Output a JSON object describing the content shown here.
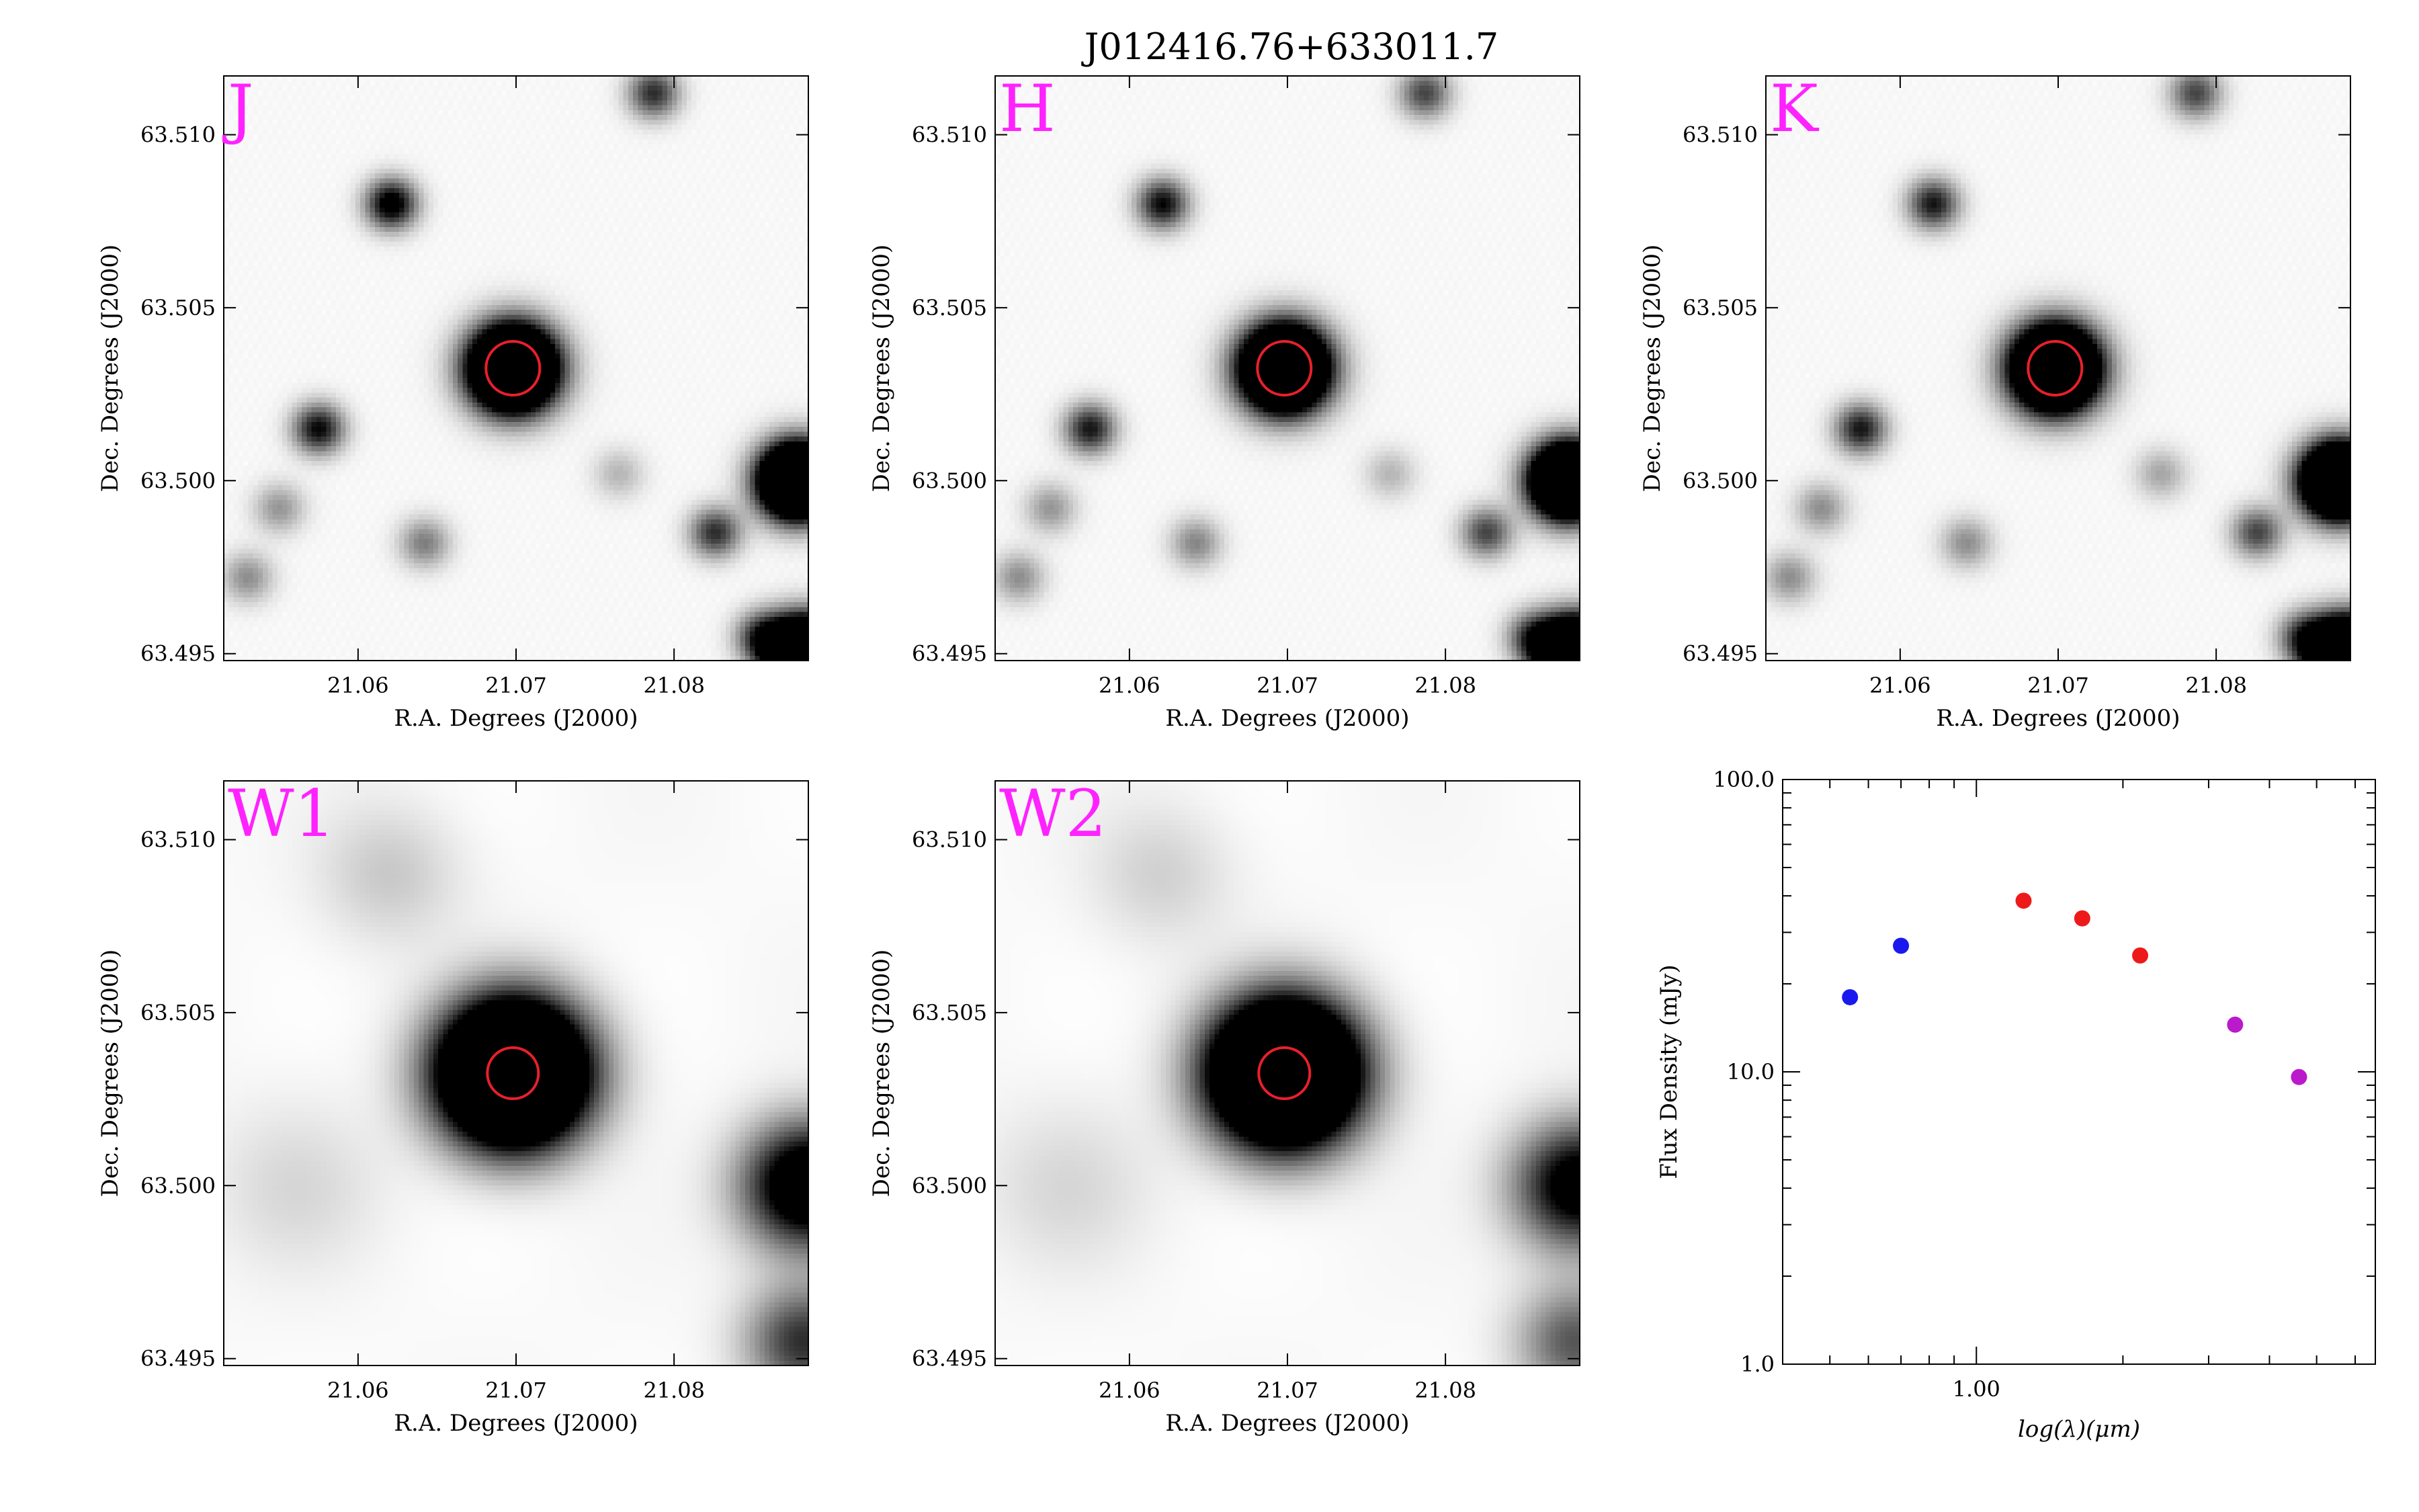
{
  "figure_title": "J012416.76+633011.7",
  "colors": {
    "band_label": "#ff22ff",
    "aperture": "#e8202a",
    "point_blue": "#1a1aee",
    "point_red": "#ee1a1a",
    "point_magenta": "#bb19cc"
  },
  "chart_data": [
    {
      "type": "heatmap",
      "band": "J",
      "xlabel": "R.A. Degrees (J2000)",
      "ylabel": "Dec. Degrees (J2000)",
      "xlim": [
        21.0515,
        21.0885
      ],
      "ylim": [
        63.4948,
        63.5117
      ],
      "xticks": [
        21.06,
        21.07,
        21.08
      ],
      "xtick_labels": [
        "21.06",
        "21.07",
        "21.08"
      ],
      "yticks": [
        63.495,
        63.5,
        63.505,
        63.51
      ],
      "ytick_labels": [
        "63.495",
        "63.500",
        "63.505",
        "63.510"
      ],
      "target": {
        "ra": 21.0698,
        "dec": 63.50325
      },
      "sources": [
        {
          "ra": 21.0698,
          "dec": 63.50325,
          "strength": 1.0,
          "sigma_arcsec": 3.0
        },
        {
          "ra": 21.0878,
          "dec": 63.5,
          "strength": 1.0,
          "sigma_arcsec": 2.6
        },
        {
          "ra": 21.0882,
          "dec": 63.495,
          "strength": 1.0,
          "sigma_arcsec": 2.5
        },
        {
          "ra": 21.0621,
          "dec": 63.508,
          "strength": 0.35,
          "sigma_arcsec": 1.8
        },
        {
          "ra": 21.0575,
          "dec": 63.5015,
          "strength": 0.3,
          "sigma_arcsec": 1.8
        },
        {
          "ra": 21.0787,
          "dec": 63.5112,
          "strength": 0.25,
          "sigma_arcsec": 1.8
        },
        {
          "ra": 21.0826,
          "dec": 63.4985,
          "strength": 0.25,
          "sigma_arcsec": 1.8
        },
        {
          "ra": 21.0855,
          "dec": 63.4955,
          "strength": 0.22,
          "sigma_arcsec": 1.8
        },
        {
          "ra": 21.0642,
          "dec": 63.4982,
          "strength": 0.15,
          "sigma_arcsec": 1.8
        },
        {
          "ra": 21.055,
          "dec": 63.4992,
          "strength": 0.12,
          "sigma_arcsec": 1.8
        },
        {
          "ra": 21.053,
          "dec": 63.4972,
          "strength": 0.13,
          "sigma_arcsec": 1.8
        },
        {
          "ra": 21.0765,
          "dec": 63.5002,
          "strength": 0.08,
          "sigma_arcsec": 1.8
        }
      ]
    },
    {
      "type": "heatmap",
      "band": "H",
      "xlabel": "R.A. Degrees (J2000)",
      "ylabel": "Dec. Degrees (J2000)",
      "xlim": [
        21.0515,
        21.0885
      ],
      "ylim": [
        63.4948,
        63.5117
      ],
      "xticks": [
        21.06,
        21.07,
        21.08
      ],
      "xtick_labels": [
        "21.06",
        "21.07",
        "21.08"
      ],
      "yticks": [
        63.495,
        63.5,
        63.505,
        63.51
      ],
      "ytick_labels": [
        "63.495",
        "63.500",
        "63.505",
        "63.510"
      ],
      "target": {
        "ra": 21.0698,
        "dec": 63.50325
      },
      "sources": [
        {
          "ra": 21.0698,
          "dec": 63.50325,
          "strength": 1.0,
          "sigma_arcsec": 3.0
        },
        {
          "ra": 21.0878,
          "dec": 63.5,
          "strength": 1.0,
          "sigma_arcsec": 2.6
        },
        {
          "ra": 21.0882,
          "dec": 63.495,
          "strength": 1.0,
          "sigma_arcsec": 2.5
        },
        {
          "ra": 21.0621,
          "dec": 63.508,
          "strength": 0.3,
          "sigma_arcsec": 1.8
        },
        {
          "ra": 21.0575,
          "dec": 63.5015,
          "strength": 0.28,
          "sigma_arcsec": 1.8
        },
        {
          "ra": 21.0787,
          "dec": 63.5112,
          "strength": 0.22,
          "sigma_arcsec": 1.8
        },
        {
          "ra": 21.0826,
          "dec": 63.4985,
          "strength": 0.22,
          "sigma_arcsec": 1.8
        },
        {
          "ra": 21.0855,
          "dec": 63.4955,
          "strength": 0.2,
          "sigma_arcsec": 1.8
        },
        {
          "ra": 21.0642,
          "dec": 63.4982,
          "strength": 0.14,
          "sigma_arcsec": 1.8
        },
        {
          "ra": 21.055,
          "dec": 63.4992,
          "strength": 0.12,
          "sigma_arcsec": 1.8
        },
        {
          "ra": 21.053,
          "dec": 63.4972,
          "strength": 0.13,
          "sigma_arcsec": 1.8
        },
        {
          "ra": 21.0765,
          "dec": 63.5002,
          "strength": 0.08,
          "sigma_arcsec": 1.8
        }
      ]
    },
    {
      "type": "heatmap",
      "band": "K",
      "xlabel": "R.A. Degrees (J2000)",
      "ylabel": "Dec. Degrees (J2000)",
      "xlim": [
        21.0515,
        21.0885
      ],
      "ylim": [
        63.4948,
        63.5117
      ],
      "xticks": [
        21.06,
        21.07,
        21.08
      ],
      "xtick_labels": [
        "21.06",
        "21.07",
        "21.08"
      ],
      "yticks": [
        63.495,
        63.5,
        63.505,
        63.51
      ],
      "ytick_labels": [
        "63.495",
        "63.500",
        "63.505",
        "63.510"
      ],
      "target": {
        "ra": 21.0698,
        "dec": 63.50325
      },
      "sources": [
        {
          "ra": 21.0698,
          "dec": 63.50325,
          "strength": 1.0,
          "sigma_arcsec": 3.0
        },
        {
          "ra": 21.0878,
          "dec": 63.5,
          "strength": 1.0,
          "sigma_arcsec": 2.6
        },
        {
          "ra": 21.0882,
          "dec": 63.495,
          "strength": 1.0,
          "sigma_arcsec": 2.5
        },
        {
          "ra": 21.0621,
          "dec": 63.508,
          "strength": 0.28,
          "sigma_arcsec": 1.8
        },
        {
          "ra": 21.0575,
          "dec": 63.5015,
          "strength": 0.28,
          "sigma_arcsec": 1.8
        },
        {
          "ra": 21.0787,
          "dec": 63.5112,
          "strength": 0.22,
          "sigma_arcsec": 1.8
        },
        {
          "ra": 21.0826,
          "dec": 63.4985,
          "strength": 0.22,
          "sigma_arcsec": 1.8
        },
        {
          "ra": 21.0855,
          "dec": 63.4955,
          "strength": 0.2,
          "sigma_arcsec": 1.8
        },
        {
          "ra": 21.0642,
          "dec": 63.4982,
          "strength": 0.13,
          "sigma_arcsec": 1.8
        },
        {
          "ra": 21.055,
          "dec": 63.4992,
          "strength": 0.13,
          "sigma_arcsec": 1.8
        },
        {
          "ra": 21.053,
          "dec": 63.4972,
          "strength": 0.13,
          "sigma_arcsec": 1.8
        },
        {
          "ra": 21.0765,
          "dec": 63.5002,
          "strength": 0.1,
          "sigma_arcsec": 1.8
        }
      ]
    },
    {
      "type": "heatmap",
      "band": "W1",
      "xlabel": "R.A. Degrees (J2000)",
      "ylabel": "Dec. Degrees (J2000)",
      "xlim": [
        21.0515,
        21.0885
      ],
      "ylim": [
        63.4948,
        63.5117
      ],
      "xticks": [
        21.06,
        21.07,
        21.08
      ],
      "xtick_labels": [
        "21.06",
        "21.07",
        "21.08"
      ],
      "yticks": [
        63.495,
        63.5,
        63.505,
        63.51
      ],
      "ytick_labels": [
        "63.495",
        "63.500",
        "63.505",
        "63.510"
      ],
      "target": {
        "ra": 21.0698,
        "dec": 63.50325
      },
      "sources": [
        {
          "ra": 21.0698,
          "dec": 63.50325,
          "strength": 1.0,
          "sigma_arcsec": 5.0
        },
        {
          "ra": 21.0885,
          "dec": 63.5,
          "strength": 0.45,
          "sigma_arcsec": 4.5
        },
        {
          "ra": 21.0882,
          "dec": 63.4955,
          "strength": 0.25,
          "sigma_arcsec": 4.0
        },
        {
          "ra": 21.062,
          "dec": 63.509,
          "strength": 0.06,
          "sigma_arcsec": 5.0
        },
        {
          "ra": 21.056,
          "dec": 63.5,
          "strength": 0.04,
          "sigma_arcsec": 6.0
        }
      ]
    },
    {
      "type": "heatmap",
      "band": "W2",
      "xlabel": "R.A. Degrees (J2000)",
      "ylabel": "Dec. Degrees (J2000)",
      "xlim": [
        21.0515,
        21.0885
      ],
      "ylim": [
        63.4948,
        63.5117
      ],
      "xticks": [
        21.06,
        21.07,
        21.08
      ],
      "xtick_labels": [
        "21.06",
        "21.07",
        "21.08"
      ],
      "yticks": [
        63.495,
        63.5,
        63.505,
        63.51
      ],
      "ytick_labels": [
        "63.495",
        "63.500",
        "63.505",
        "63.510"
      ],
      "target": {
        "ra": 21.0698,
        "dec": 63.50325
      },
      "sources": [
        {
          "ra": 21.0698,
          "dec": 63.50325,
          "strength": 1.0,
          "sigma_arcsec": 5.0
        },
        {
          "ra": 21.0885,
          "dec": 63.5,
          "strength": 0.38,
          "sigma_arcsec": 4.5
        },
        {
          "ra": 21.0882,
          "dec": 63.4955,
          "strength": 0.2,
          "sigma_arcsec": 4.0
        },
        {
          "ra": 21.062,
          "dec": 63.509,
          "strength": 0.05,
          "sigma_arcsec": 5.0
        },
        {
          "ra": 21.056,
          "dec": 63.5,
          "strength": 0.04,
          "sigma_arcsec": 6.0
        }
      ]
    },
    {
      "type": "scatter",
      "xlabel": "log(λ)(μm)",
      "ylabel": "Flux Density (mJy)",
      "xscale": "log",
      "yscale": "log",
      "xlim": [
        0.4,
        6.6
      ],
      "ylim": [
        1.0,
        100.0
      ],
      "xtick_labels": [
        "1.00"
      ],
      "ytick_labels": [
        "1.0",
        "10.0",
        "100.0"
      ],
      "grid": false,
      "series": [
        {
          "color": "#1a1aee",
          "x": [
            0.55,
            0.7
          ],
          "y": [
            18.0,
            27.0
          ]
        },
        {
          "color": "#ee1a1a",
          "x": [
            1.25,
            1.65,
            2.17
          ],
          "y": [
            38.5,
            33.5,
            25.0
          ]
        },
        {
          "color": "#bb19cc",
          "x": [
            3.4,
            4.6
          ],
          "y": [
            14.5,
            9.6
          ]
        }
      ]
    }
  ]
}
